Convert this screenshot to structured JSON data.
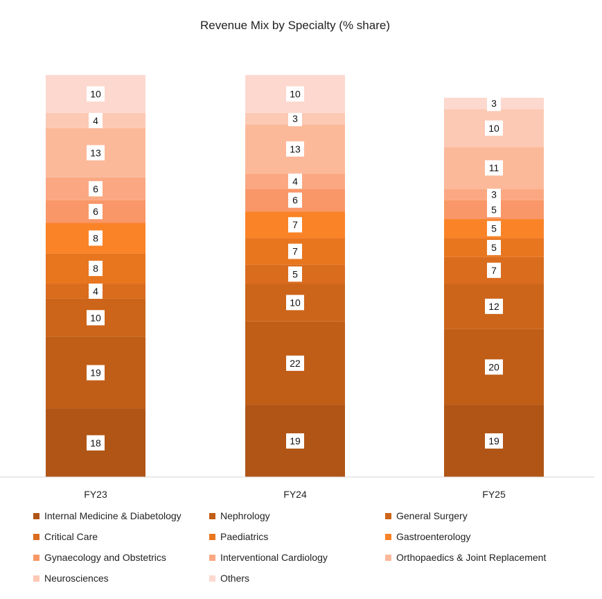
{
  "chart_data": {
    "type": "bar",
    "stacked": true,
    "title": "Revenue Mix by Specialty (% share)",
    "categories": [
      "FY23",
      "FY24",
      "FY25"
    ],
    "series": [
      {
        "name": "Internal Medicine & Diabetology",
        "color": "#B05516",
        "values": [
          18,
          19,
          19
        ]
      },
      {
        "name": "Nephrology",
        "color": "#C05E18",
        "values": [
          19,
          22,
          20
        ]
      },
      {
        "name": "General Surgery",
        "color": "#CC651A",
        "values": [
          10,
          10,
          12
        ]
      },
      {
        "name": "Critical Care",
        "color": "#DA6C1E",
        "values": [
          4,
          5,
          7
        ]
      },
      {
        "name": "Paediatrics",
        "color": "#E8761F",
        "values": [
          8,
          7,
          5
        ]
      },
      {
        "name": "Gastroenterology",
        "color": "#FA8327",
        "values": [
          8,
          7,
          5
        ]
      },
      {
        "name": "Gynaecology and Obstetrics",
        "color": "#F99768",
        "values": [
          6,
          6,
          5
        ]
      },
      {
        "name": "Interventional Cardiology",
        "color": "#FBA882",
        "values": [
          6,
          4,
          3
        ]
      },
      {
        "name": "Orthopaedics & Joint Replacement",
        "color": "#FCB99A",
        "values": [
          13,
          13,
          11
        ]
      },
      {
        "name": "Neurosciences",
        "color": "#FCC9B4",
        "values": [
          4,
          3,
          10
        ]
      },
      {
        "name": "Others",
        "color": "#FDD8CF",
        "values": [
          10,
          10,
          3
        ]
      }
    ],
    "legend_position": "bottom",
    "gridlines": false
  }
}
